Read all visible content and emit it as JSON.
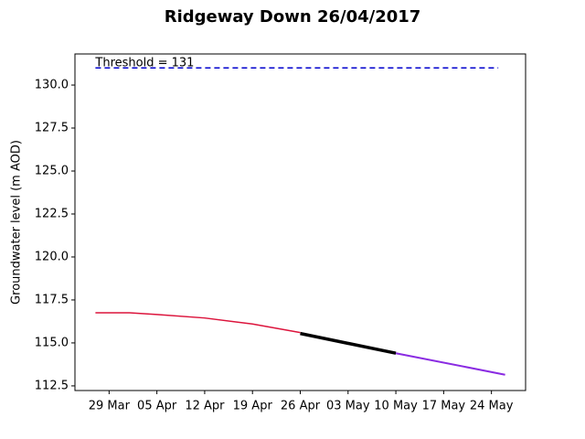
{
  "chart_data": {
    "type": "line",
    "title": "Ridgeway Down 26/04/2017",
    "ylabel": "Groundwater level (m AOD)",
    "series": [
      {
        "color": "#dc143c",
        "width": 1.5,
        "x": [
          "27 Mar",
          "01 Apr",
          "05 Apr",
          "12 Apr",
          "19 Apr",
          "26 Apr"
        ],
        "values": [
          116.75,
          116.75,
          116.65,
          116.45,
          116.1,
          115.6
        ]
      },
      {
        "color": "#000000",
        "width": 3.5,
        "x": [
          "26 Apr",
          "10 May"
        ],
        "values": [
          115.55,
          114.4
        ]
      },
      {
        "color": "#8a2be2",
        "width": 2,
        "x": [
          "10 May",
          "26 May"
        ],
        "values": [
          114.4,
          113.15
        ]
      }
    ],
    "threshold": {
      "value": 131,
      "label": "Threshold = 131",
      "color": "#0000cd",
      "x": [
        "27 Mar",
        "25 May"
      ]
    },
    "xlim": [
      "24 Mar",
      "29 May"
    ],
    "xticks": [
      "29 Mar",
      "05 Apr",
      "12 Apr",
      "19 Apr",
      "26 Apr",
      "03 May",
      "10 May",
      "17 May",
      "24 May"
    ],
    "ylim": [
      112.23,
      131.81
    ],
    "yticks": [
      112.5,
      {
        "value": 115,
        "label": "115.0"
      },
      117.5,
      {
        "value": 120,
        "label": "120.0"
      },
      122.5,
      {
        "value": 125,
        "label": "125.0"
      },
      127.5,
      {
        "value": 130,
        "label": "130.0"
      }
    ]
  }
}
